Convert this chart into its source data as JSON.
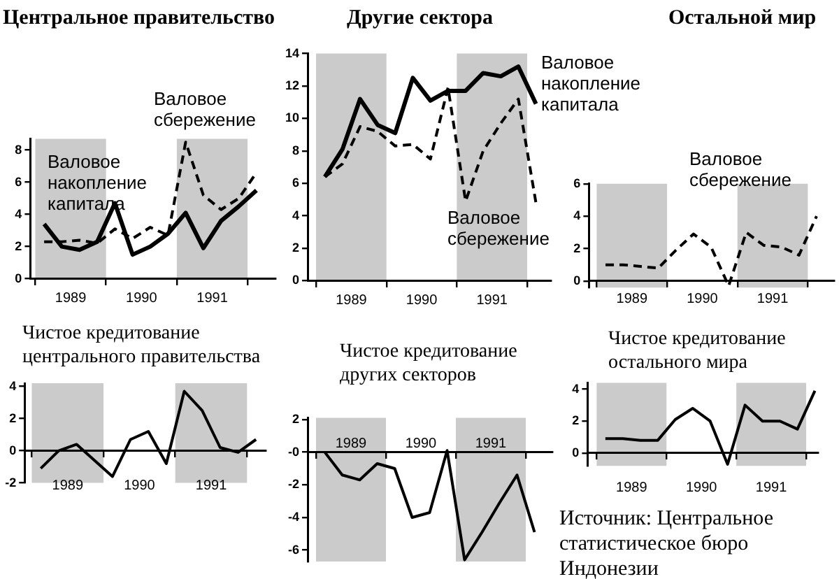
{
  "chart_data": [
    {
      "type": "line",
      "title": "Центральное правительство",
      "x": [
        1989.125,
        1989.375,
        1989.625,
        1989.875,
        1990.125,
        1990.375,
        1990.625,
        1990.875,
        1991.125,
        1991.375,
        1991.625,
        1991.875,
        1992.125
      ],
      "xlim": [
        1988.93,
        1992.4
      ],
      "xticks": [
        {
          "value": 1989,
          "label": null
        },
        {
          "value": 1989.5,
          "label": "1989"
        },
        {
          "value": 1990,
          "label": null
        },
        {
          "value": 1990.5,
          "label": "1990"
        },
        {
          "value": 1991,
          "label": null
        },
        {
          "value": 1991.5,
          "label": "1991"
        },
        {
          "value": 1992,
          "label": null
        }
      ],
      "ylim": [
        0,
        8.7
      ],
      "yticks": [
        0,
        2,
        4,
        6,
        8
      ],
      "series": [
        {
          "name": "Валовое накопление капитала",
          "color": "#000000",
          "line_style": "solid",
          "values": [
            3.4,
            2.0,
            1.8,
            2.3,
            4.7,
            1.5,
            2.0,
            2.8,
            4.1,
            1.9,
            3.6,
            4.5,
            5.5
          ]
        },
        {
          "name": "Валовое сбережение",
          "color": "#000000",
          "line_style": "dashed",
          "values": [
            2.3,
            2.3,
            2.4,
            2.2,
            3.1,
            2.5,
            3.2,
            2.7,
            8.5,
            5.2,
            4.3,
            5.0,
            6.6
          ]
        }
      ],
      "bands": [
        {
          "axis": "x",
          "from": 1989,
          "to": 1990,
          "color": "#cbcbcb"
        },
        {
          "axis": "x",
          "from": 1991,
          "to": 1992,
          "color": "#cbcbcb"
        }
      ],
      "grid": false,
      "legend": false,
      "marker": "none"
    },
    {
      "type": "line",
      "title": "Другие сектора",
      "x": [
        1989.125,
        1989.375,
        1989.625,
        1989.875,
        1990.125,
        1990.375,
        1990.625,
        1990.875,
        1991.125,
        1991.375,
        1991.625,
        1991.875,
        1992.125
      ],
      "xlim": [
        1988.88,
        1992.34
      ],
      "xticks": [
        {
          "value": 1989,
          "label": null
        },
        {
          "value": 1989.5,
          "label": "1989"
        },
        {
          "value": 1990,
          "label": null
        },
        {
          "value": 1990.5,
          "label": "1990"
        },
        {
          "value": 1991,
          "label": null
        },
        {
          "value": 1991.5,
          "label": "1991"
        },
        {
          "value": 1992,
          "label": null
        }
      ],
      "ylim": [
        0,
        14
      ],
      "yticks": [
        0,
        2,
        4,
        6,
        8,
        10,
        12,
        14
      ],
      "series": [
        {
          "name": "Валовое накопление капитала",
          "color": "#000000",
          "line_style": "solid",
          "values": [
            6.4,
            8.1,
            11.2,
            9.6,
            9.1,
            12.5,
            11.1,
            11.7,
            11.7,
            12.8,
            12.6,
            13.2,
            10.9
          ]
        },
        {
          "name": "Валовое сбережение",
          "color": "#000000",
          "line_style": "dashed",
          "values": [
            6.4,
            7.2,
            9.5,
            9.2,
            8.3,
            8.4,
            7.5,
            11.9,
            4.9,
            8.0,
            9.7,
            11.2,
            4.8
          ]
        }
      ],
      "bands": [
        {
          "axis": "x",
          "from": 1989,
          "to": 1990,
          "color": "#cbcbcb"
        },
        {
          "axis": "x",
          "from": 1991,
          "to": 1992,
          "color": "#cbcbcb"
        }
      ],
      "grid": false,
      "legend": false,
      "marker": "none"
    },
    {
      "type": "line",
      "title": "Остальной мир",
      "x": [
        1989.125,
        1989.375,
        1989.625,
        1989.875,
        1990.125,
        1990.375,
        1990.625,
        1990.875,
        1991.125,
        1991.375,
        1991.625,
        1991.875,
        1992.125
      ],
      "xlim": [
        1988.89,
        1992.38
      ],
      "xticks": [
        {
          "value": 1989,
          "label": null
        },
        {
          "value": 1989.5,
          "label": "1989"
        },
        {
          "value": 1990,
          "label": null
        },
        {
          "value": 1990.5,
          "label": "1990"
        },
        {
          "value": 1991,
          "label": null
        },
        {
          "value": 1991.5,
          "label": "1991"
        },
        {
          "value": 1992,
          "label": null
        }
      ],
      "ylim": [
        -0.4,
        6
      ],
      "yticks": [
        0,
        2,
        4,
        6
      ],
      "series": [
        {
          "name": "Валовое сбережение",
          "color": "#000000",
          "line_style": "dashed",
          "values": [
            1.0,
            1.0,
            0.9,
            0.8,
            1.9,
            2.9,
            2.1,
            -0.3,
            3.0,
            2.2,
            2.1,
            1.6,
            4.0
          ]
        }
      ],
      "bands": [
        {
          "axis": "x",
          "from": 1989,
          "to": 1990,
          "color": "#cbcbcb"
        },
        {
          "axis": "x",
          "from": 1991,
          "to": 1992,
          "color": "#cbcbcb"
        }
      ],
      "grid": false,
      "legend": false,
      "marker": "none"
    },
    {
      "type": "line",
      "title": "Чистое кредитование центрального правительства",
      "x": [
        1989.125,
        1989.375,
        1989.625,
        1989.875,
        1990.125,
        1990.375,
        1990.625,
        1990.875,
        1991.125,
        1991.375,
        1991.625,
        1991.875,
        1992.125
      ],
      "xlim": [
        1988.9,
        1992.26
      ],
      "xticks": [
        {
          "value": 1989,
          "label": null
        },
        {
          "value": 1989.5,
          "label": "1989"
        },
        {
          "value": 1990,
          "label": null
        },
        {
          "value": 1990.5,
          "label": "1990"
        },
        {
          "value": 1991,
          "label": null
        },
        {
          "value": 1991.5,
          "label": "1991"
        },
        {
          "value": 1992,
          "label": null
        }
      ],
      "ylim": [
        -2,
        4.2
      ],
      "yticks": [
        -2,
        0,
        2,
        4
      ],
      "color": "#000000",
      "values": [
        -1.1,
        0.0,
        0.4,
        -0.6,
        -1.6,
        0.7,
        1.2,
        -0.8,
        3.7,
        2.5,
        0.2,
        -0.1,
        0.7
      ],
      "bands": [
        {
          "axis": "x",
          "from": 1989,
          "to": 1990,
          "color": "#cbcbcb"
        },
        {
          "axis": "x",
          "from": 1991,
          "to": 1992,
          "color": "#cbcbcb"
        }
      ],
      "grid": false,
      "legend": false,
      "marker": "none"
    },
    {
      "type": "line",
      "title": "Чистое кредитование других секторов",
      "x": [
        1989.125,
        1989.375,
        1989.625,
        1989.875,
        1990.125,
        1990.375,
        1990.625,
        1990.875,
        1991.125,
        1991.375,
        1991.625,
        1991.875,
        1992.125
      ],
      "xlim": [
        1988.88,
        1992.38
      ],
      "xticks": [
        {
          "value": 1989,
          "label": null
        },
        {
          "value": 1989.5,
          "label": "1989"
        },
        {
          "value": 1990,
          "label": null
        },
        {
          "value": 1990.5,
          "label": "1990"
        },
        {
          "value": 1991,
          "label": null
        },
        {
          "value": 1991.5,
          "label": "1991"
        },
        {
          "value": 1992,
          "label": null
        }
      ],
      "ylim": [
        -6.7,
        2.1
      ],
      "yticks": [
        -6,
        -4,
        -2,
        {
          "value": 0,
          "label": "-0"
        },
        2
      ],
      "color": "#000000",
      "values": [
        0.0,
        -1.4,
        -1.7,
        -0.7,
        -1.0,
        -4.0,
        -3.7,
        0.1,
        -6.6,
        -4.9,
        -3.1,
        -1.4,
        -4.9
      ],
      "bands": [
        {
          "axis": "x",
          "from": 1989,
          "to": 1990,
          "color": "#cbcbcb"
        },
        {
          "axis": "x",
          "from": 1991,
          "to": 1992,
          "color": "#cbcbcb"
        }
      ],
      "grid": false,
      "legend": false,
      "marker": "none"
    },
    {
      "type": "line",
      "title": "Чистое кредитование остального мира",
      "x": [
        1989.125,
        1989.375,
        1989.625,
        1989.875,
        1990.125,
        1990.375,
        1990.625,
        1990.875,
        1991.125,
        1991.375,
        1991.625,
        1991.875,
        1992.125
      ],
      "xlim": [
        1988.87,
        1992.17
      ],
      "xticks": [
        {
          "value": 1989,
          "label": null
        },
        {
          "value": 1989.5,
          "label": "1989"
        },
        {
          "value": 1990,
          "label": null
        },
        {
          "value": 1990.5,
          "label": "1990"
        },
        {
          "value": 1991,
          "label": null
        },
        {
          "value": 1991.5,
          "label": "1991"
        },
        {
          "value": 1992,
          "label": null
        }
      ],
      "ylim": [
        -0.8,
        4.4
      ],
      "yticks": [
        0,
        2,
        4
      ],
      "color": "#000000",
      "values": [
        0.9,
        0.9,
        0.8,
        0.8,
        2.1,
        2.8,
        2.0,
        -0.7,
        3.0,
        2.0,
        2.0,
        1.5,
        3.9
      ],
      "bands": [
        {
          "axis": "x",
          "from": 1989,
          "to": 1990,
          "color": "#cbcbcb"
        },
        {
          "axis": "x",
          "from": 1991,
          "to": 1992,
          "color": "#cbcbcb"
        }
      ],
      "grid": false,
      "legend": false,
      "marker": "none",
      "annotations": [
        "Источник: Центральное статистическое бюро Индонезии"
      ]
    }
  ]
}
